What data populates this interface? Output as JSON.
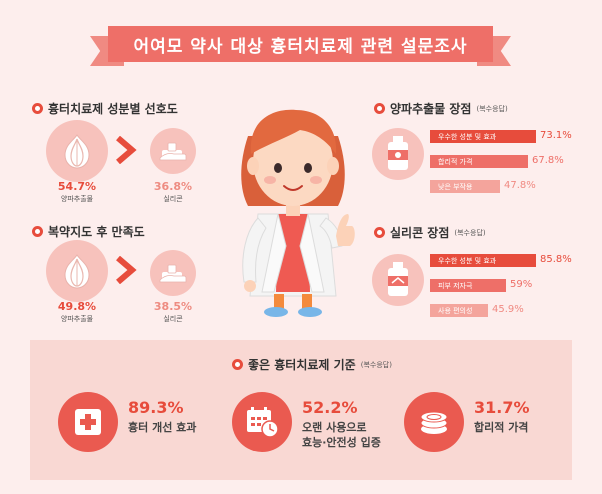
{
  "banner": {
    "title": "어여모 약사 대상 흉터치료제 관련 설문조사"
  },
  "preference": {
    "title": "흉터치료제 성분별 선호도",
    "left": {
      "value": "54.7%",
      "label": "양파추출물"
    },
    "right": {
      "value": "36.8%",
      "label": "실리콘"
    }
  },
  "satisfaction": {
    "title": "복약지도 후 만족도",
    "left": {
      "value": "49.8%",
      "label": "양파추출물"
    },
    "right": {
      "value": "38.5%",
      "label": "실리콘"
    }
  },
  "onion_merits": {
    "title": "양파추출물 장점",
    "note": "(복수응답)",
    "items": [
      {
        "label": "우수한 성분 및 효과",
        "value": "73.1%",
        "level": 73.1
      },
      {
        "label": "합리적 가격",
        "value": "67.8%",
        "level": 67.8
      },
      {
        "label": "낮은 부작용",
        "value": "47.8%",
        "level": 47.8
      }
    ]
  },
  "silicone_merits": {
    "title": "실리콘 장점",
    "note": "(복수응답)",
    "items": [
      {
        "label": "우수한 성분 및 효과",
        "value": "85.8%",
        "level": 85.8
      },
      {
        "label": "피부 저자극",
        "value": "59%",
        "level": 59
      },
      {
        "label": "사용 편의성",
        "value": "45.9%",
        "level": 45.9
      }
    ]
  },
  "criteria": {
    "title": "좋은 흉터치료제 기준",
    "note": "(복수응답)",
    "items": [
      {
        "value": "89.3%",
        "line1": "흉터 개선 효과",
        "line2": ""
      },
      {
        "value": "52.2%",
        "line1": "오랜 사용으로",
        "line2": "효능·안전성 입증"
      },
      {
        "value": "31.7%",
        "line1": "합리적 가격",
        "line2": ""
      }
    ]
  },
  "colors": {
    "bar1": "#e74c3c",
    "bar2": "#ee6f68",
    "bar3": "#f4a49c"
  }
}
